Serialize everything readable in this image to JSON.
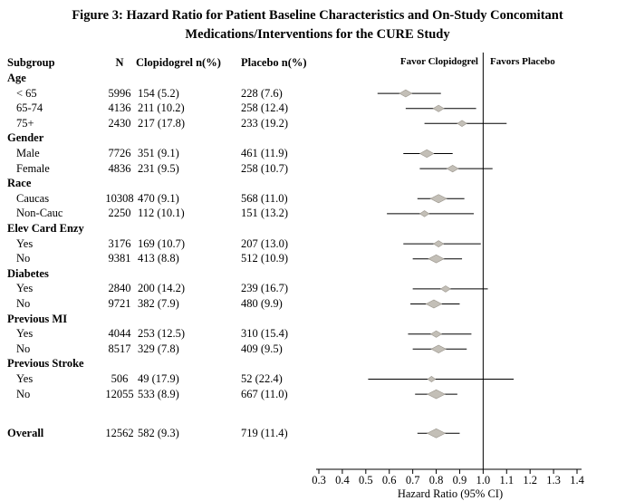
{
  "title": {
    "line1": "Figure 3: Hazard Ratio for Patient Baseline Characteristics and On-Study Concomitant",
    "line2": "Medications/Interventions for the CURE Study"
  },
  "table": {
    "headers": {
      "subgroup": "Subgroup",
      "n": "N",
      "clopidogrel": "Clopidogrel n(%)",
      "placebo": "Placebo n(%)"
    }
  },
  "colors": {
    "diamond_fill": "#c3bfb7",
    "diamond_stroke": "#9b968d",
    "line": "#000000"
  },
  "chart_data": {
    "type": "forest",
    "xlabel": "Hazard Ratio (95% CI)",
    "xlim": [
      0.3,
      1.4
    ],
    "reference_line": 1.0,
    "tick_labels": [
      "0.3",
      "0.4",
      "0.5",
      "0.6",
      "0.7",
      "0.8",
      "0.9",
      "1.0",
      "1.1",
      "1.2",
      "1.3",
      "1.4"
    ],
    "favor_left_label": "Favor Clopidogrel",
    "favor_right_label": "Favors Placebo",
    "rows": [
      {
        "type": "group",
        "label": "Age"
      },
      {
        "type": "item",
        "label": "< 65",
        "n": "5996",
        "clopidogrel": "154 (5.2)",
        "placebo": "228 (7.6)",
        "hr": 0.67,
        "lo": 0.55,
        "hi": 0.82
      },
      {
        "type": "item",
        "label": "65-74",
        "n": "4136",
        "clopidogrel": "211 (10.2)",
        "placebo": "258 (12.4)",
        "hr": 0.81,
        "lo": 0.67,
        "hi": 0.97
      },
      {
        "type": "item",
        "label": "75+",
        "n": "2430",
        "clopidogrel": "217 (17.8)",
        "placebo": "233 (19.2)",
        "hr": 0.91,
        "lo": 0.75,
        "hi": 1.1
      },
      {
        "type": "group",
        "label": "Gender"
      },
      {
        "type": "item",
        "label": "Male",
        "n": "7726",
        "clopidogrel": "351 (9.1)",
        "placebo": "461 (11.9)",
        "hr": 0.76,
        "lo": 0.66,
        "hi": 0.87
      },
      {
        "type": "item",
        "label": "Female",
        "n": "4836",
        "clopidogrel": "231 (9.5)",
        "placebo": "258 (10.7)",
        "hr": 0.87,
        "lo": 0.73,
        "hi": 1.04
      },
      {
        "type": "group",
        "label": "Race"
      },
      {
        "type": "item",
        "label": "Caucas",
        "n": "10308",
        "clopidogrel": "470 (9.1)",
        "placebo": "568 (11.0)",
        "hr": 0.81,
        "lo": 0.72,
        "hi": 0.92
      },
      {
        "type": "item",
        "label": "Non-Cauc",
        "n": "2250",
        "clopidogrel": "112 (10.1)",
        "placebo": "151 (13.2)",
        "hr": 0.75,
        "lo": 0.59,
        "hi": 0.96
      },
      {
        "type": "group",
        "label": "Elev Card Enzy"
      },
      {
        "type": "item",
        "label": "Yes",
        "n": "3176",
        "clopidogrel": "169 (10.7)",
        "placebo": "207 (13.0)",
        "hr": 0.81,
        "lo": 0.66,
        "hi": 0.99
      },
      {
        "type": "item",
        "label": "No",
        "n": "9381",
        "clopidogrel": "413 (8.8)",
        "placebo": "512 (10.9)",
        "hr": 0.8,
        "lo": 0.7,
        "hi": 0.91
      },
      {
        "type": "group",
        "label": "Diabetes"
      },
      {
        "type": "item",
        "label": "Yes",
        "n": "2840",
        "clopidogrel": "200 (14.2)",
        "placebo": "239 (16.7)",
        "hr": 0.84,
        "lo": 0.7,
        "hi": 1.02
      },
      {
        "type": "item",
        "label": "No",
        "n": "9721",
        "clopidogrel": "382 (7.9)",
        "placebo": "480 (9.9)",
        "hr": 0.79,
        "lo": 0.69,
        "hi": 0.9
      },
      {
        "type": "group",
        "label": "Previous MI"
      },
      {
        "type": "item",
        "label": "Yes",
        "n": "4044",
        "clopidogrel": "253 (12.5)",
        "placebo": "310 (15.4)",
        "hr": 0.8,
        "lo": 0.68,
        "hi": 0.95
      },
      {
        "type": "item",
        "label": "No",
        "n": "8517",
        "clopidogrel": "329 (7.8)",
        "placebo": "409 (9.5)",
        "hr": 0.81,
        "lo": 0.7,
        "hi": 0.93
      },
      {
        "type": "group",
        "label": "Previous Stroke"
      },
      {
        "type": "item",
        "label": "Yes",
        "n": "506",
        "clopidogrel": "49 (17.9)",
        "placebo": "52 (22.4)",
        "hr": 0.78,
        "lo": 0.51,
        "hi": 1.13
      },
      {
        "type": "item",
        "label": "No",
        "n": "12055",
        "clopidogrel": "533 (8.9)",
        "placebo": "667 (11.0)",
        "hr": 0.8,
        "lo": 0.71,
        "hi": 0.89
      },
      {
        "type": "spacer"
      },
      {
        "type": "overall",
        "label": "Overall",
        "n": "12562",
        "clopidogrel": "582 (9.3)",
        "placebo": "719 (11.4)",
        "hr": 0.8,
        "lo": 0.72,
        "hi": 0.9
      }
    ]
  }
}
